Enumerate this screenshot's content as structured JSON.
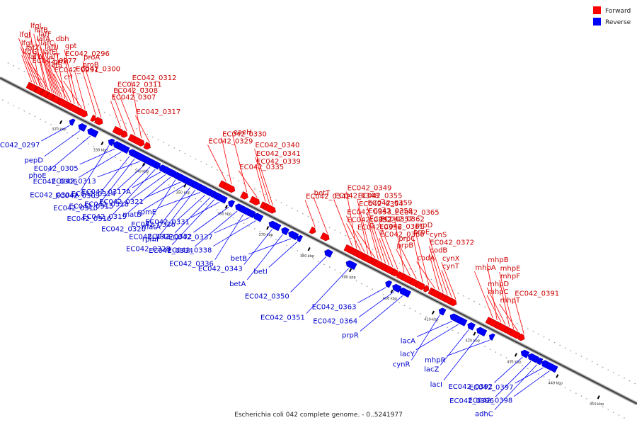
{
  "title": "Escherichia coli 042 complete genome. - 0..5241977",
  "legend": [
    {
      "label": "Forward",
      "color": "#ff0000"
    },
    {
      "label": "Reverse",
      "color": "#0000ff"
    }
  ],
  "ticks": [
    {
      "value": 320,
      "label": "320 kbp"
    },
    {
      "value": 330,
      "label": "330 kbp"
    },
    {
      "value": 340,
      "label": "340 kbp"
    },
    {
      "value": 350,
      "label": "350 kbp"
    },
    {
      "value": 360,
      "label": "360 kbp"
    },
    {
      "value": 370,
      "label": "370 kbp"
    },
    {
      "value": 380,
      "label": "380 kbp"
    },
    {
      "value": 390,
      "label": "390 kbp"
    },
    {
      "value": 400,
      "label": "400 kbp"
    },
    {
      "value": 410,
      "label": "410 kbp"
    },
    {
      "value": 420,
      "label": "420 kbp"
    },
    {
      "value": 430,
      "label": "430 kbp"
    },
    {
      "value": 440,
      "label": "440 kbp"
    },
    {
      "value": 450,
      "label": "450 kbp"
    }
  ],
  "forward_genes": [
    {
      "name": "lfgG",
      "kbp": 310.5
    },
    {
      "name": "lfgI",
      "kbp": 311.2
    },
    {
      "name": "lfgJ",
      "kbp": 311.8
    },
    {
      "name": "lfgL",
      "kbp": 312.4
    },
    {
      "name": "lafW",
      "kbp": 312.9
    },
    {
      "name": "lafZ",
      "kbp": 313.4
    },
    {
      "name": "lafA",
      "kbp": 313.9
    },
    {
      "name": "lafB",
      "kbp": 314.4
    },
    {
      "name": "EC042_0277",
      "kbp": 314.9
    },
    {
      "name": "lafE",
      "kbp": 315.4
    },
    {
      "name": "lafC",
      "kbp": 315.9
    },
    {
      "name": "lafF",
      "kbp": 316.4
    },
    {
      "name": "lafS",
      "kbp": 316.9
    },
    {
      "name": "lafT",
      "kbp": 317.4
    },
    {
      "name": "lafU",
      "kbp": 317.9
    },
    {
      "name": "dbh",
      "kbp": 318.5
    },
    {
      "name": "EC042_0291",
      "kbp": 319.2
    },
    {
      "name": "prfH",
      "kbp": 320.0
    },
    {
      "name": "EC042_0296",
      "kbp": 320.8
    },
    {
      "name": "gpt",
      "kbp": 321.8
    },
    {
      "name": "crl",
      "kbp": 322.6
    },
    {
      "name": "EC042_0300",
      "kbp": 323.4
    },
    {
      "name": "proB",
      "kbp": 326.0
    },
    {
      "name": "proA",
      "kbp": 327.3
    },
    {
      "name": "EC042_0307",
      "kbp": 332.0
    },
    {
      "name": "EC042_0308",
      "kbp": 333.5
    },
    {
      "name": "EC042_0311",
      "kbp": 335.5
    },
    {
      "name": "EC042_0312",
      "kbp": 337.0
    },
    {
      "name": "EC042_0317",
      "kbp": 339.0
    },
    {
      "name": "EC042_0329",
      "kbp": 357.5
    },
    {
      "name": "EC042_0330",
      "kbp": 358.8
    },
    {
      "name": "eaeH",
      "kbp": 362.5
    },
    {
      "name": "EC042_0335",
      "kbp": 365.0
    },
    {
      "name": "EC042_0339",
      "kbp": 367.0
    },
    {
      "name": "EC042_0341",
      "kbp": 368.0
    },
    {
      "name": "EC042_0340",
      "kbp": 368.8
    },
    {
      "name": "EC042_0342",
      "kbp": 379.0
    },
    {
      "name": "betT",
      "kbp": 382.0
    },
    {
      "name": "EC042_0348",
      "kbp": 388.0
    },
    {
      "name": "EC042_0349",
      "kbp": 389.0
    },
    {
      "name": "EC042_0352",
      "kbp": 390.0
    },
    {
      "name": "EC042_0353",
      "kbp": 391.0
    },
    {
      "name": "EC042_0354",
      "kbp": 391.8
    },
    {
      "name": "EC042_0355",
      "kbp": 392.6
    },
    {
      "name": "EC042_0356",
      "kbp": 393.5
    },
    {
      "name": "EC042_0357",
      "kbp": 394.3
    },
    {
      "name": "EC042_0358",
      "kbp": 395.1
    },
    {
      "name": "EC042_0359",
      "kbp": 396.0
    },
    {
      "name": "EC042_0360",
      "kbp": 396.9
    },
    {
      "name": "EC042_0361",
      "kbp": 397.8
    },
    {
      "name": "EC042_0362",
      "kbp": 399.0
    },
    {
      "name": "EC042_0365",
      "kbp": 400.5
    },
    {
      "name": "prpB",
      "kbp": 402.0
    },
    {
      "name": "prpC",
      "kbp": 403.5
    },
    {
      "name": "prpE",
      "kbp": 405.0
    },
    {
      "name": "prpD",
      "kbp": 406.5
    },
    {
      "name": "codA",
      "kbp": 408.0
    },
    {
      "name": "codB",
      "kbp": 409.0
    },
    {
      "name": "EC042_0372",
      "kbp": 410.0
    },
    {
      "name": "cynS",
      "kbp": 411.0
    },
    {
      "name": "cynT",
      "kbp": 412.0
    },
    {
      "name": "cynX",
      "kbp": 413.0
    },
    {
      "name": "mhpA",
      "kbp": 422.0
    },
    {
      "name": "mhpB",
      "kbp": 423.0
    },
    {
      "name": "mhpC",
      "kbp": 424.0
    },
    {
      "name": "mhpD",
      "kbp": 425.0
    },
    {
      "name": "mhpF",
      "kbp": 426.0
    },
    {
      "name": "mhpE",
      "kbp": 427.0
    },
    {
      "name": "mhpT",
      "kbp": 428.0
    },
    {
      "name": "EC042_0391",
      "kbp": 429.5
    }
  ],
  "reverse_genes": [
    {
      "name": "EC042_0297",
      "kbp": 322.0
    },
    {
      "name": "pepD",
      "kbp": 324.5
    },
    {
      "name": "phoE",
      "kbp": 327.0
    },
    {
      "name": "EC042_0304A",
      "kbp": 331.5
    },
    {
      "name": "EC042_0305",
      "kbp": 333.0
    },
    {
      "name": "EC042_0306",
      "kbp": 334.5
    },
    {
      "name": "EC042_0309",
      "kbp": 336.5
    },
    {
      "name": "EC042_0310",
      "kbp": 337.7
    },
    {
      "name": "EC042_0313",
      "kbp": 339.0
    },
    {
      "name": "EC042_0314",
      "kbp": 340.3
    },
    {
      "name": "EC042_0315",
      "kbp": 341.5
    },
    {
      "name": "EC042_0316",
      "kbp": 342.7
    },
    {
      "name": "EC042_0317A",
      "kbp": 344.0
    },
    {
      "name": "EC042_0318",
      "kbp": 345.2
    },
    {
      "name": "EC042_0319",
      "kbp": 346.4
    },
    {
      "name": "EC042_0320",
      "kbp": 347.6
    },
    {
      "name": "EC042_0321",
      "kbp": 348.8
    },
    {
      "name": "matB",
      "kbp": 350.0
    },
    {
      "name": "matA",
      "kbp": 351.2
    },
    {
      "name": "rpmI",
      "kbp": 352.4
    },
    {
      "name": "rpmE",
      "kbp": 353.6
    },
    {
      "name": "EC042_0326",
      "kbp": 354.8
    },
    {
      "name": "EC042_0327",
      "kbp": 356.0
    },
    {
      "name": "EC042_0328",
      "kbp": 357.0
    },
    {
      "name": "EC042_0331",
      "kbp": 358.2
    },
    {
      "name": "EC042_0332",
      "kbp": 360.5
    },
    {
      "name": "EC042_0334",
      "kbp": 362.5
    },
    {
      "name": "EC042_0336",
      "kbp": 364.0
    },
    {
      "name": "EC042_0337",
      "kbp": 365.5
    },
    {
      "name": "EC042_0338",
      "kbp": 367.0
    },
    {
      "name": "EC042_0343",
      "kbp": 371.0
    },
    {
      "name": "betA",
      "kbp": 373.5
    },
    {
      "name": "betB",
      "kbp": 375.5
    },
    {
      "name": "betI",
      "kbp": 377.0
    },
    {
      "name": "EC042_0350",
      "kbp": 384.0
    },
    {
      "name": "EC042_0351",
      "kbp": 389.5
    },
    {
      "name": "EC042_0363",
      "kbp": 398.5
    },
    {
      "name": "EC042_0364",
      "kbp": 400.5
    },
    {
      "name": "prpR",
      "kbp": 402.5
    },
    {
      "name": "cynR",
      "kbp": 411.5
    },
    {
      "name": "lacA",
      "kbp": 414.5
    },
    {
      "name": "lacY",
      "kbp": 416.0
    },
    {
      "name": "lacZ",
      "kbp": 418.5
    },
    {
      "name": "lacI",
      "kbp": 421.0
    },
    {
      "name": "mhpR",
      "kbp": 423.5
    },
    {
      "name": "EC042_0392",
      "kbp": 431.5
    },
    {
      "name": "EC042_0396",
      "kbp": 433.5
    },
    {
      "name": "adhC",
      "kbp": 435.0
    },
    {
      "name": "EC042_0397",
      "kbp": 436.5
    },
    {
      "name": "EC042_0398",
      "kbp": 438.0
    }
  ]
}
